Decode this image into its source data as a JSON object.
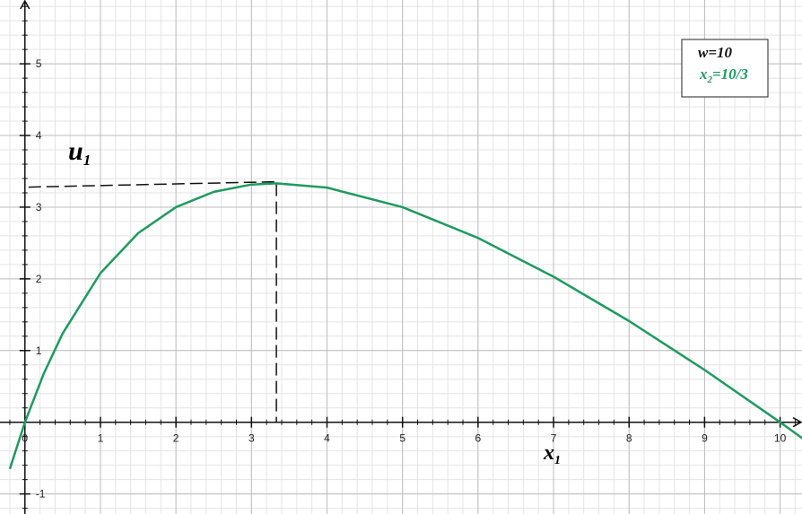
{
  "chart_data": {
    "type": "line",
    "x": [
      -0.2,
      0,
      0.25,
      0.5,
      1,
      1.5,
      2,
      2.5,
      3,
      3.33,
      4,
      5,
      6,
      7,
      8,
      9,
      10,
      10.3
    ],
    "series": [
      {
        "name": "u1",
        "color": "#1f9a60",
        "values": [
          -0.651,
          0,
          0.68,
          1.239,
          2.08,
          2.638,
          3.0,
          3.214,
          3.316,
          3.333,
          3.273,
          3.0,
          2.571,
          2.03,
          1.412,
          0.73,
          0,
          -0.227
        ]
      }
    ],
    "xlim": [
      -0.33,
      10.29
    ],
    "ylim": [
      -1.28,
      5.89
    ],
    "xticks": [
      0,
      1,
      2,
      3,
      4,
      5,
      6,
      7,
      8,
      9,
      10
    ],
    "yticks": [
      -1,
      1,
      2,
      3,
      4,
      5
    ],
    "grid": true,
    "minor_grid_step": 0.2,
    "x_label": "x",
    "x_label_sub": "1",
    "y_label": "u",
    "y_label_sub": "1",
    "peak": {
      "x": 3.33,
      "y": 3.33
    },
    "legend": {
      "line1": "w=10",
      "line2_main": "x",
      "line2_sub": "2",
      "line2_rest": "=10/3"
    }
  }
}
